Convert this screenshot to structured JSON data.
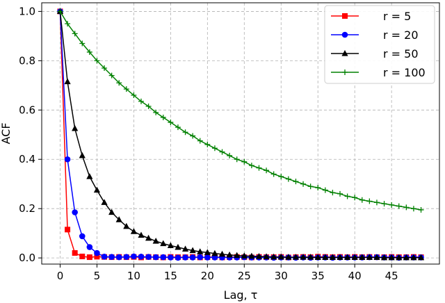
{
  "chart_data": {
    "type": "line",
    "title": "",
    "xlabel": "Lag, τ",
    "ylabel": "ACF",
    "xlim": [
      -2.5,
      51.5
    ],
    "ylim": [
      -0.025,
      1.035
    ],
    "xticks": [
      0,
      5,
      10,
      15,
      20,
      25,
      30,
      35,
      40,
      45
    ],
    "yticks": [
      0.0,
      0.2,
      0.4,
      0.6,
      0.8,
      1.0
    ],
    "ytick_labels": [
      "0.0",
      "0.2",
      "0.4",
      "0.6",
      "0.8",
      "1.0"
    ],
    "grid": true,
    "legend_position": "top-right",
    "x": [
      0,
      1,
      2,
      3,
      4,
      5,
      6,
      7,
      8,
      9,
      10,
      11,
      12,
      13,
      14,
      15,
      16,
      17,
      18,
      19,
      20,
      21,
      22,
      23,
      24,
      25,
      26,
      27,
      28,
      29,
      30,
      31,
      32,
      33,
      34,
      35,
      36,
      37,
      38,
      39,
      40,
      41,
      42,
      43,
      44,
      45,
      46,
      47,
      48,
      49
    ],
    "series": [
      {
        "name": "r = 5",
        "color": "#ff0000",
        "marker": "square",
        "values": [
          1.0,
          0.115,
          0.02,
          0.006,
          0.003,
          0.005,
          0.004,
          0.003,
          0.004,
          0.003,
          0.004,
          0.002,
          0.004,
          0.003,
          0.002,
          0.004,
          0.003,
          0.003,
          0.004,
          0.002,
          0.003,
          0.004,
          0.002,
          0.003,
          0.004,
          0.003,
          0.002,
          0.004,
          0.003,
          0.003,
          0.004,
          0.002,
          0.003,
          0.004,
          0.003,
          0.005,
          0.004,
          0.003,
          0.004,
          0.003,
          0.004,
          0.003,
          0.004,
          0.003,
          0.003,
          0.004,
          0.003,
          0.003,
          0.004,
          0.003
        ]
      },
      {
        "name": "r = 20",
        "color": "#0000ff",
        "marker": "circle",
        "values": [
          1.0,
          0.4,
          0.185,
          0.088,
          0.044,
          0.02,
          0.005,
          0.004,
          0.003,
          0.004,
          0.006,
          0.005,
          0.004,
          0.003,
          0.003,
          0.002,
          0.001,
          0.002,
          0.002,
          0.003,
          0.002,
          0.002,
          0.002,
          0.002,
          0.002,
          0.003,
          0.002,
          0.002,
          0.002,
          0.001,
          0.002,
          0.002,
          0.001,
          0.002,
          0.001,
          0.002,
          0.002,
          0.001,
          0.002,
          0.002,
          0.002,
          0.002,
          0.003,
          0.003,
          0.002,
          0.002,
          0.001,
          0.002,
          0.002,
          0.002
        ]
      },
      {
        "name": "r = 50",
        "color": "#000000",
        "marker": "triangle",
        "values": [
          1.0,
          0.715,
          0.525,
          0.415,
          0.33,
          0.275,
          0.225,
          0.185,
          0.155,
          0.128,
          0.107,
          0.092,
          0.08,
          0.068,
          0.058,
          0.05,
          0.043,
          0.036,
          0.03,
          0.025,
          0.022,
          0.018,
          0.015,
          0.012,
          0.01,
          0.008,
          0.007,
          0.006,
          0.005,
          0.004,
          0.004,
          0.003,
          0.003,
          0.003,
          0.003,
          0.002,
          0.002,
          0.002,
          0.002,
          0.002,
          0.002,
          0.002,
          0.002,
          0.002,
          0.001,
          0.001,
          0.001,
          0.001,
          0.001,
          0.001
        ]
      },
      {
        "name": "r = 100",
        "color": "#008000",
        "marker": "plus",
        "values": [
          1.0,
          0.95,
          0.91,
          0.87,
          0.835,
          0.8,
          0.77,
          0.74,
          0.71,
          0.685,
          0.66,
          0.635,
          0.615,
          0.59,
          0.57,
          0.55,
          0.53,
          0.51,
          0.495,
          0.475,
          0.46,
          0.445,
          0.43,
          0.415,
          0.4,
          0.39,
          0.375,
          0.365,
          0.355,
          0.34,
          0.33,
          0.32,
          0.31,
          0.3,
          0.29,
          0.285,
          0.275,
          0.265,
          0.26,
          0.25,
          0.245,
          0.235,
          0.23,
          0.225,
          0.22,
          0.215,
          0.21,
          0.205,
          0.2,
          0.195
        ]
      }
    ]
  }
}
